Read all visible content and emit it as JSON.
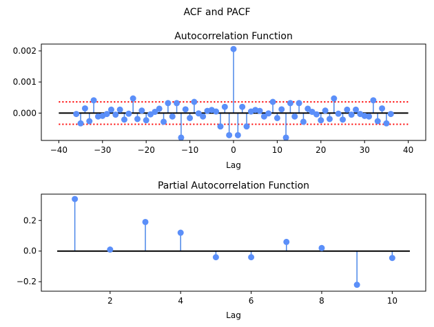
{
  "figure": {
    "suptitle": "ACF and PACF"
  },
  "colors": {
    "stem": "#4a86e8",
    "marker": "#5b8ff9",
    "baseline": "#000000",
    "confidence": "#ff0000"
  },
  "chart_data": [
    {
      "type": "stem",
      "title": "Autocorrelation Function",
      "xlabel": "Lag",
      "ylabel": "",
      "xlim": [
        -44,
        44
      ],
      "ylim": [
        -0.00088,
        0.00222
      ],
      "xticks": [
        -40,
        -30,
        -20,
        -10,
        0,
        10,
        20,
        30,
        40
      ],
      "xtick_labels": [
        "−40",
        "−30",
        "−20",
        "−10",
        "0",
        "10",
        "20",
        "30",
        "40"
      ],
      "yticks": [
        0.0,
        0.001,
        0.002
      ],
      "ytick_labels": [
        "0.000",
        "0.001",
        "0.002"
      ],
      "baseline_range": [
        -40,
        40
      ],
      "confidence_band": [
        -0.00036,
        0.00036
      ],
      "grid": false,
      "x": [
        -36,
        -35,
        -34,
        -33,
        -32,
        -31,
        -30,
        -29,
        -28,
        -27,
        -26,
        -25,
        -24,
        -23,
        -22,
        -21,
        -20,
        -19,
        -18,
        -17,
        -16,
        -15,
        -14,
        -13,
        -12,
        -11,
        -10,
        -9,
        -8,
        -7,
        -6,
        -5,
        -4,
        -3,
        -2,
        -1,
        0,
        1,
        2,
        3,
        4,
        5,
        6,
        7,
        8,
        9,
        10,
        11,
        12,
        13,
        14,
        15,
        16,
        17,
        18,
        19,
        20,
        21,
        22,
        23,
        24,
        25,
        26,
        27,
        28,
        29,
        30,
        31,
        32,
        33,
        34,
        35,
        36
      ],
      "values": [
        -3e-05,
        -0.00033,
        0.00015,
        -0.00026,
        0.00041,
        -0.00011,
        -9e-05,
        -3e-05,
        0.00011,
        -5e-05,
        0.00011,
        -0.00021,
        -2e-05,
        0.00047,
        -0.00019,
        8e-05,
        -0.00023,
        -4e-05,
        4e-05,
        0.00014,
        -0.00028,
        0.00032,
        -0.00011,
        0.00032,
        -0.00079,
        0.00012,
        -0.00016,
        0.00036,
        -1e-05,
        -0.00011,
        7e-05,
        0.0001,
        5e-05,
        -0.00043,
        0.0002,
        -0.00071,
        0.00206,
        -0.00071,
        0.0002,
        -0.00043,
        5e-05,
        0.0001,
        7e-05,
        -0.00011,
        -1e-05,
        0.00036,
        -0.00016,
        0.00012,
        -0.00079,
        0.00032,
        -0.00011,
        0.00032,
        -0.00028,
        0.00014,
        4e-05,
        -4e-05,
        -0.00023,
        8e-05,
        -0.00019,
        0.00047,
        -2e-05,
        -0.00021,
        0.00011,
        -5e-05,
        0.00011,
        -3e-05,
        -9e-05,
        -0.00011,
        0.00041,
        -0.00026,
        0.00015,
        -0.00033,
        -3e-05
      ]
    },
    {
      "type": "stem",
      "title": "Partial Autocorrelation Function",
      "xlabel": "Lag",
      "ylabel": "",
      "xlim": [
        0.05,
        10.95
      ],
      "ylim": [
        -0.262,
        0.372
      ],
      "xticks": [
        2,
        4,
        6,
        8,
        10
      ],
      "xtick_labels": [
        "2",
        "4",
        "6",
        "8",
        "10"
      ],
      "yticks": [
        -0.2,
        0.0,
        0.2
      ],
      "ytick_labels": [
        "−0.2",
        "0.0",
        "0.2"
      ],
      "baseline_range": [
        0.5,
        10.5
      ],
      "grid": false,
      "x": [
        1,
        2,
        3,
        4,
        5,
        6,
        7,
        8,
        9,
        10
      ],
      "values": [
        0.34,
        0.01,
        0.19,
        0.12,
        -0.04,
        -0.04,
        0.06,
        0.02,
        -0.22,
        -0.045
      ]
    }
  ]
}
